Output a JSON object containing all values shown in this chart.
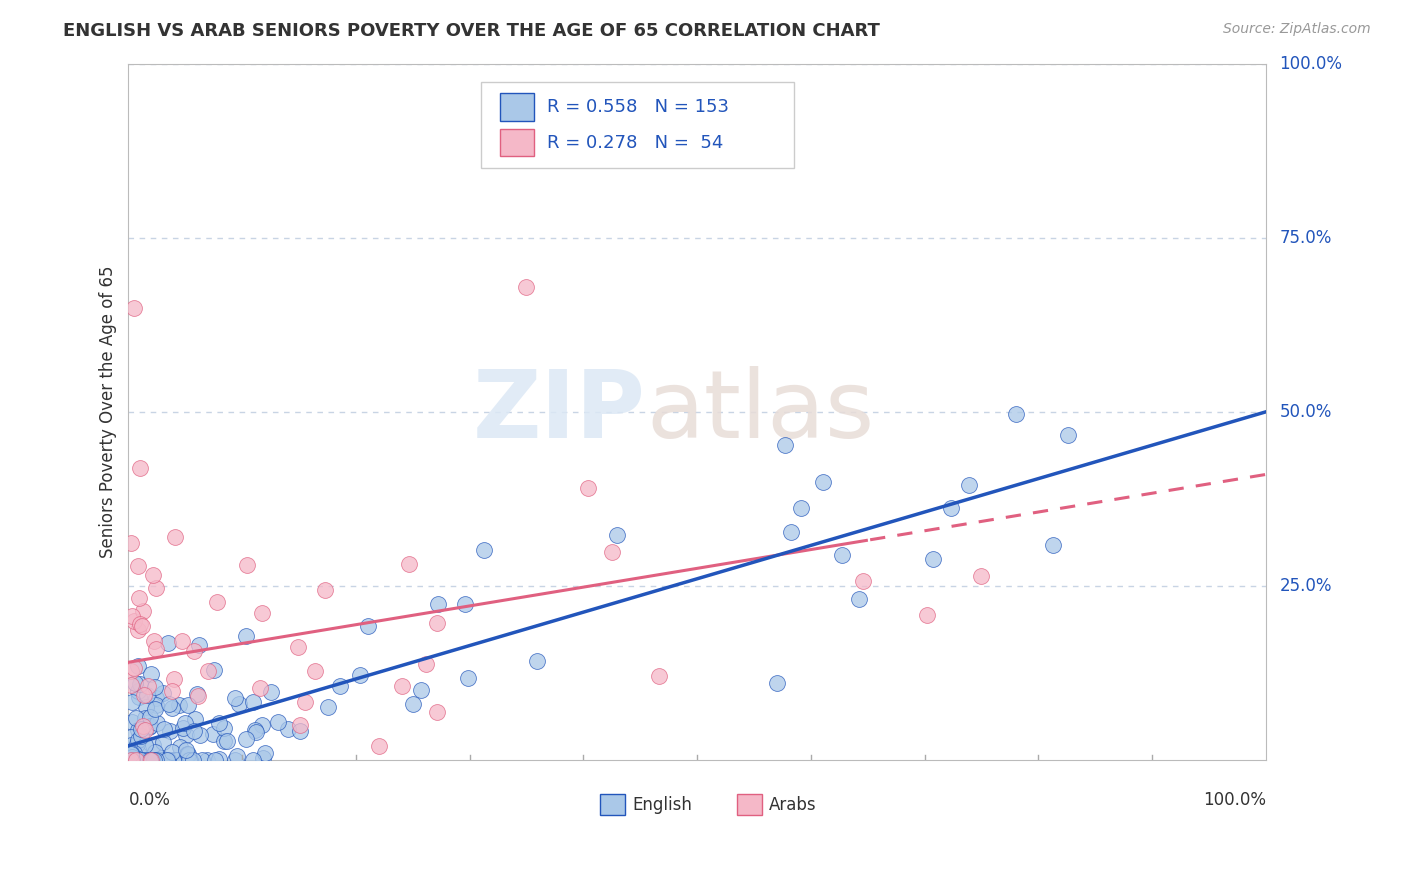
{
  "title": "ENGLISH VS ARAB SENIORS POVERTY OVER THE AGE OF 65 CORRELATION CHART",
  "source": "Source: ZipAtlas.com",
  "ylabel": "Seniors Poverty Over the Age of 65",
  "english_R": 0.558,
  "english_N": 153,
  "arab_R": 0.278,
  "arab_N": 54,
  "english_color": "#aac8e8",
  "arab_color": "#f5b8c8",
  "english_line_color": "#2255bb",
  "arab_line_color": "#e06080",
  "legend_text_color": "#2255bb",
  "background_color": "#ffffff",
  "grid_color": "#c8d4e4",
  "ytick_vals": [
    0.25,
    0.5,
    0.75,
    1.0
  ],
  "ytick_labels": [
    "25.0%",
    "50.0%",
    "75.0%",
    "100.0%"
  ]
}
